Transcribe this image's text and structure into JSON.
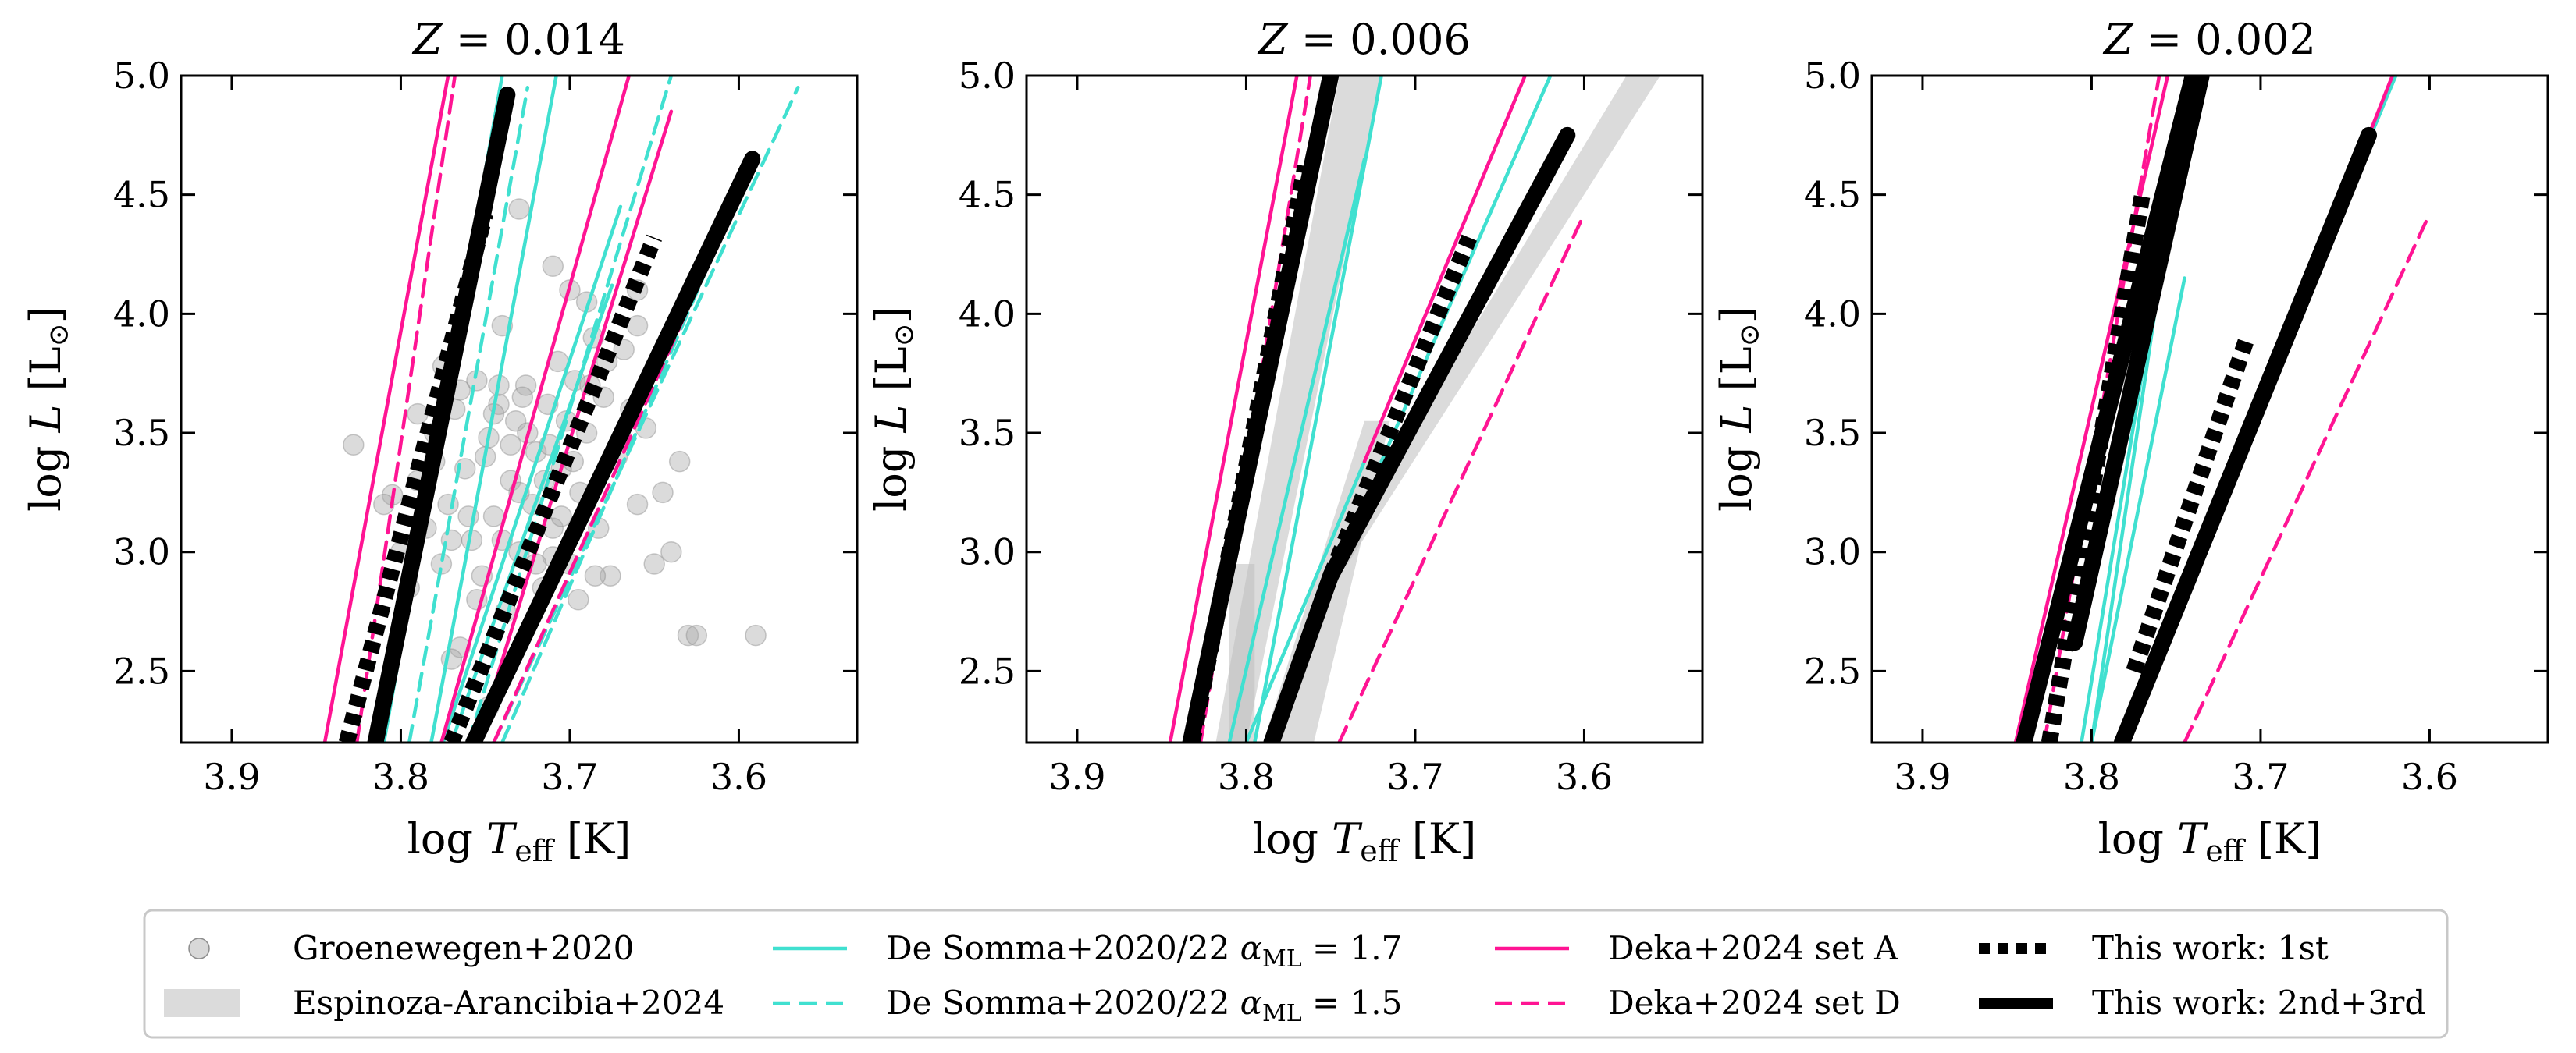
{
  "chart_data": [
    {
      "type": "line",
      "title": "Z = 0.014",
      "title_var": "Z",
      "title_value": "0.014",
      "xlabel": "log T_eff [K]",
      "ylabel": "log L [L_sun]",
      "xlim": [
        3.93,
        3.53
      ],
      "ylim": [
        2.2,
        5.0
      ],
      "xticks": [
        "3.9",
        "3.8",
        "3.7",
        "3.6"
      ],
      "yticks": [
        "2.5",
        "3.0",
        "3.5",
        "4.0",
        "4.5",
        "5.0"
      ],
      "scatter": [
        [
          3.828,
          3.45
        ],
        [
          3.805,
          3.24
        ],
        [
          3.795,
          2.85
        ],
        [
          3.79,
          3.3
        ],
        [
          3.785,
          3.1
        ],
        [
          3.78,
          3.5
        ],
        [
          3.776,
          2.95
        ],
        [
          3.772,
          3.2
        ],
        [
          3.768,
          3.6
        ],
        [
          3.765,
          2.6
        ],
        [
          3.762,
          3.35
        ],
        [
          3.758,
          3.05
        ],
        [
          3.755,
          3.72
        ],
        [
          3.752,
          2.9
        ],
        [
          3.748,
          3.48
        ],
        [
          3.745,
          3.15
        ],
        [
          3.742,
          3.62
        ],
        [
          3.738,
          2.75
        ],
        [
          3.735,
          3.3
        ],
        [
          3.732,
          3.55
        ],
        [
          3.73,
          3.0
        ],
        [
          3.726,
          3.7
        ],
        [
          3.722,
          3.2
        ],
        [
          3.72,
          3.42
        ],
        [
          3.716,
          2.85
        ],
        [
          3.713,
          3.62
        ],
        [
          3.71,
          3.1
        ],
        [
          3.707,
          3.8
        ],
        [
          3.705,
          3.35
        ],
        [
          3.702,
          3.55
        ],
        [
          3.7,
          2.95
        ],
        [
          3.697,
          3.72
        ],
        [
          3.694,
          3.25
        ],
        [
          3.69,
          3.5
        ],
        [
          3.686,
          3.9
        ],
        [
          3.683,
          3.1
        ],
        [
          3.68,
          3.65
        ],
        [
          3.676,
          2.9
        ],
        [
          3.672,
          3.4
        ],
        [
          3.668,
          3.85
        ],
        [
          3.664,
          3.6
        ],
        [
          3.66,
          3.2
        ],
        [
          3.655,
          3.52
        ],
        [
          3.65,
          2.95
        ],
        [
          3.645,
          3.25
        ],
        [
          3.64,
          3.0
        ],
        [
          3.635,
          3.38
        ],
        [
          3.63,
          2.65
        ],
        [
          3.625,
          2.65
        ],
        [
          3.59,
          2.65
        ],
        [
          3.73,
          4.44
        ],
        [
          3.71,
          4.2
        ],
        [
          3.74,
          3.95
        ],
        [
          3.748,
          2.35
        ],
        [
          3.77,
          2.55
        ],
        [
          3.775,
          3.78
        ],
        [
          3.71,
          2.98
        ],
        [
          3.695,
          2.8
        ],
        [
          3.685,
          2.9
        ],
        [
          3.76,
          3.15
        ],
        [
          3.75,
          3.4
        ],
        [
          3.74,
          3.05
        ],
        [
          3.73,
          3.25
        ],
        [
          3.72,
          2.95
        ],
        [
          3.765,
          3.68
        ],
        [
          3.745,
          3.58
        ],
        [
          3.735,
          3.45
        ],
        [
          3.725,
          3.5
        ],
        [
          3.715,
          3.3
        ],
        [
          3.705,
          3.15
        ],
        [
          3.78,
          3.38
        ],
        [
          3.79,
          3.58
        ],
        [
          3.8,
          3.0
        ],
        [
          3.81,
          3.2
        ],
        [
          3.77,
          3.05
        ],
        [
          3.755,
          2.8
        ],
        [
          3.742,
          3.7
        ],
        [
          3.728,
          3.65
        ],
        [
          3.712,
          3.45
        ],
        [
          3.698,
          3.38
        ],
        [
          3.688,
          3.7
        ],
        [
          3.678,
          3.8
        ],
        [
          3.7,
          4.1
        ],
        [
          3.69,
          4.05
        ],
        [
          3.66,
          3.95
        ],
        [
          3.66,
          4.1
        ]
      ],
      "series": [
        {
          "name": "De Somma+2020/22 αML = 1.7",
          "color": "#40E0D0",
          "dash": "solid",
          "width": 3,
          "segments": [
            [
              [
                3.81,
                2.2
              ],
              [
                3.74,
                5.0
              ]
            ],
            [
              [
                3.782,
                2.2
              ],
              [
                3.708,
                5.0
              ]
            ],
            [
              [
                3.775,
                2.2
              ],
              [
                3.67,
                4.45
              ]
            ],
            [
              [
                3.77,
                2.2
              ],
              [
                3.675,
                4.12
              ]
            ]
          ]
        },
        {
          "name": "De Somma+2020/22 αML = 1.5",
          "color": "#40E0D0",
          "dash": "dashed",
          "width": 3,
          "segments": [
            [
              [
                3.795,
                2.2
              ],
              [
                3.725,
                4.95
              ]
            ],
            [
              [
                3.76,
                2.2
              ],
              [
                3.64,
                5.0
              ]
            ],
            [
              [
                3.74,
                2.2
              ],
              [
                3.6,
                4.5
              ]
            ],
            [
              [
                3.745,
                2.2
              ],
              [
                3.565,
                4.95
              ]
            ]
          ]
        },
        {
          "name": "Deka+2024 set A",
          "color": "#FF1493",
          "dash": "solid",
          "width": 3,
          "segments": [
            [
              [
                3.845,
                2.2
              ],
              [
                3.772,
                5.0
              ]
            ],
            [
              [
                3.776,
                2.2
              ],
              [
                3.665,
                5.0
              ]
            ],
            [
              [
                3.755,
                2.2
              ],
              [
                3.64,
                4.85
              ]
            ]
          ]
        },
        {
          "name": "Deka+2024 set D",
          "color": "#FF1493",
          "dash": "dashed",
          "width": 3,
          "segments": [
            [
              [
                3.826,
                2.2
              ],
              [
                3.768,
                5.0
              ]
            ],
            [
              [
                3.745,
                2.2
              ],
              [
                3.605,
                4.42
              ]
            ]
          ]
        },
        {
          "name": "This work: 1st",
          "color": "#000000",
          "dash": "dotted",
          "width": 7,
          "segments": [
            [
              [
                3.832,
                2.2
              ],
              [
                3.75,
                4.42
              ]
            ],
            [
              [
                3.77,
                2.2
              ],
              [
                3.65,
                4.32
              ]
            ]
          ]
        },
        {
          "name": "This work: 2nd+3rd",
          "color": "#000000",
          "dash": "solid",
          "width": 7,
          "segments": [
            [
              [
                3.815,
                2.2
              ],
              [
                3.737,
                4.92
              ]
            ],
            [
              [
                3.757,
                2.2
              ],
              [
                3.592,
                4.65
              ]
            ]
          ]
        }
      ]
    },
    {
      "type": "line",
      "title": "Z = 0.006",
      "title_var": "Z",
      "title_value": "0.006",
      "xlabel": "log T_eff [K]",
      "ylabel": "log L [L_sun]",
      "xlim": [
        3.93,
        3.53
      ],
      "ylim": [
        2.2,
        5.0
      ],
      "xticks": [
        "3.9",
        "3.8",
        "3.7",
        "3.6"
      ],
      "yticks": [
        "2.5",
        "3.0",
        "3.5",
        "4.0",
        "4.5",
        "5.0"
      ],
      "bands": [
        {
          "points": [
            [
              3.818,
              2.2
            ],
            [
              3.8,
              2.2
            ],
            [
              3.72,
              5.0
            ],
            [
              3.745,
              5.0
            ]
          ]
        },
        {
          "points": [
            [
              3.81,
              2.2
            ],
            [
              3.795,
              2.2
            ],
            [
              3.795,
              2.95
            ],
            [
              3.81,
              2.95
            ]
          ]
        },
        {
          "points": [
            [
              3.79,
              2.2
            ],
            [
              3.76,
              2.2
            ],
            [
              3.715,
              3.55
            ],
            [
              3.73,
              3.55
            ]
          ]
        },
        {
          "points": [
            [
              3.75,
              2.95
            ],
            [
              3.74,
              2.95
            ],
            [
              3.555,
              5.0
            ],
            [
              3.575,
              5.0
            ]
          ]
        }
      ],
      "series": [
        {
          "name": "De Somma+2020/22 αML = 1.7",
          "color": "#40E0D0",
          "dash": "solid",
          "width": 3,
          "segments": [
            [
              [
                3.81,
                2.2
              ],
              [
                3.73,
                4.65
              ]
            ],
            [
              [
                3.795,
                2.2
              ],
              [
                3.72,
                5.0
              ]
            ],
            [
              [
                3.8,
                2.2
              ],
              [
                3.73,
                3.38
              ]
            ],
            [
              [
                3.72,
                3.38
              ],
              [
                3.62,
                5.0
              ]
            ]
          ]
        },
        {
          "name": "Deka+2024 set A",
          "color": "#FF1493",
          "dash": "solid",
          "width": 3,
          "segments": [
            [
              [
                3.845,
                2.2
              ],
              [
                3.77,
                5.0
              ]
            ],
            [
              [
                3.73,
                3.38
              ],
              [
                3.635,
                5.0
              ]
            ]
          ]
        },
        {
          "name": "Deka+2024 set D",
          "color": "#FF1493",
          "dash": "dashed",
          "width": 3,
          "segments": [
            [
              [
                3.827,
                2.2
              ],
              [
                3.762,
                5.0
              ]
            ],
            [
              [
                3.745,
                2.2
              ],
              [
                3.6,
                4.42
              ]
            ]
          ]
        },
        {
          "name": "This work: 1st",
          "color": "#000000",
          "dash": "dotted",
          "width": 7,
          "segments": [
            [
              [
                3.832,
                2.2
              ],
              [
                3.765,
                4.62
              ]
            ],
            [
              [
                3.75,
                2.9
              ],
              [
                3.668,
                4.32
              ]
            ]
          ]
        },
        {
          "name": "This work: 2nd+3rd",
          "color": "#000000",
          "dash": "solid",
          "width": 7,
          "segments": [
            [
              [
                3.833,
                2.2
              ],
              [
                3.75,
                5.0
              ]
            ],
            [
              [
                3.785,
                2.2
              ],
              [
                3.75,
                2.9
              ]
            ],
            [
              [
                3.75,
                2.9
              ],
              [
                3.61,
                4.75
              ]
            ]
          ]
        }
      ]
    },
    {
      "type": "line",
      "title": "Z = 0.002",
      "title_var": "Z",
      "title_value": "0.002",
      "xlabel": "log T_eff [K]",
      "ylabel": "log L [L_sun]",
      "xlim": [
        3.93,
        3.53
      ],
      "ylim": [
        2.2,
        5.0
      ],
      "xticks": [
        "3.9",
        "3.8",
        "3.7",
        "3.6"
      ],
      "yticks": [
        "2.5",
        "3.0",
        "3.5",
        "4.0",
        "4.5",
        "5.0"
      ],
      "series": [
        {
          "name": "De Somma+2020/22 αML = 1.7",
          "color": "#40E0D0",
          "dash": "solid",
          "width": 3,
          "segments": [
            [
              [
                3.806,
                2.2
              ],
              [
                3.75,
                4.62
              ]
            ],
            [
              [
                3.8,
                2.2
              ],
              [
                3.742,
                5.0
              ]
            ],
            [
              [
                3.8,
                2.2
              ],
              [
                3.745,
                4.15
              ]
            ],
            [
              [
                3.785,
                2.2
              ],
              [
                3.62,
                5.0
              ]
            ]
          ]
        },
        {
          "name": "Deka+2024 set A",
          "color": "#FF1493",
          "dash": "solid",
          "width": 3,
          "segments": [
            [
              [
                3.845,
                2.2
              ],
              [
                3.755,
                5.0
              ]
            ],
            [
              [
                3.778,
                2.2
              ],
              [
                3.622,
                5.0
              ]
            ]
          ]
        },
        {
          "name": "Deka+2024 set D",
          "color": "#FF1493",
          "dash": "dashed",
          "width": 3,
          "segments": [
            [
              [
                3.828,
                2.2
              ],
              [
                3.76,
                5.0
              ]
            ],
            [
              [
                3.745,
                2.2
              ],
              [
                3.6,
                4.42
              ]
            ]
          ]
        },
        {
          "name": "This work: 1st",
          "color": "#000000",
          "dash": "dotted",
          "width": 7,
          "segments": [
            [
              [
                3.825,
                2.2
              ],
              [
                3.77,
                4.5
              ]
            ],
            [
              [
                3.775,
                2.5
              ],
              [
                3.708,
                3.9
              ]
            ]
          ]
        },
        {
          "name": "This work: 2nd+3rd",
          "color": "#000000",
          "dash": "solid",
          "width": 7,
          "segments": [
            [
              [
                3.84,
                2.2
              ],
              [
                3.74,
                5.0
              ]
            ],
            [
              [
                3.81,
                2.62
              ],
              [
                3.735,
                5.0
              ]
            ],
            [
              [
                3.782,
                2.2
              ],
              [
                3.636,
                4.75
              ]
            ]
          ]
        }
      ]
    }
  ],
  "legend": {
    "placement": "bottom-center",
    "entries": [
      {
        "label": "Groenewegen+2020",
        "kind": "marker",
        "color": "#d3d3d3"
      },
      {
        "label": "Espinoza-Arancibia+2024",
        "kind": "band",
        "color": "#d9d9d9"
      },
      {
        "label": "De Somma+2020/22",
        "math": "αML = 1.7",
        "kind": "line",
        "color": "#40E0D0",
        "dash": "solid",
        "width": 3
      },
      {
        "label": "De Somma+2020/22",
        "math": "αML = 1.5",
        "kind": "line",
        "color": "#40E0D0",
        "dash": "dashed",
        "width": 3
      },
      {
        "label": "Deka+2024 set A",
        "kind": "line",
        "color": "#FF1493",
        "dash": "solid",
        "width": 3
      },
      {
        "label": "Deka+2024 set D",
        "kind": "line",
        "color": "#FF1493",
        "dash": "dashed",
        "width": 3
      },
      {
        "label": "This work: 1st",
        "kind": "line",
        "color": "#000000",
        "dash": "dotted",
        "width": 7
      },
      {
        "label": "This work: 2nd+3rd",
        "kind": "line",
        "color": "#000000",
        "dash": "solid",
        "width": 7
      }
    ]
  }
}
